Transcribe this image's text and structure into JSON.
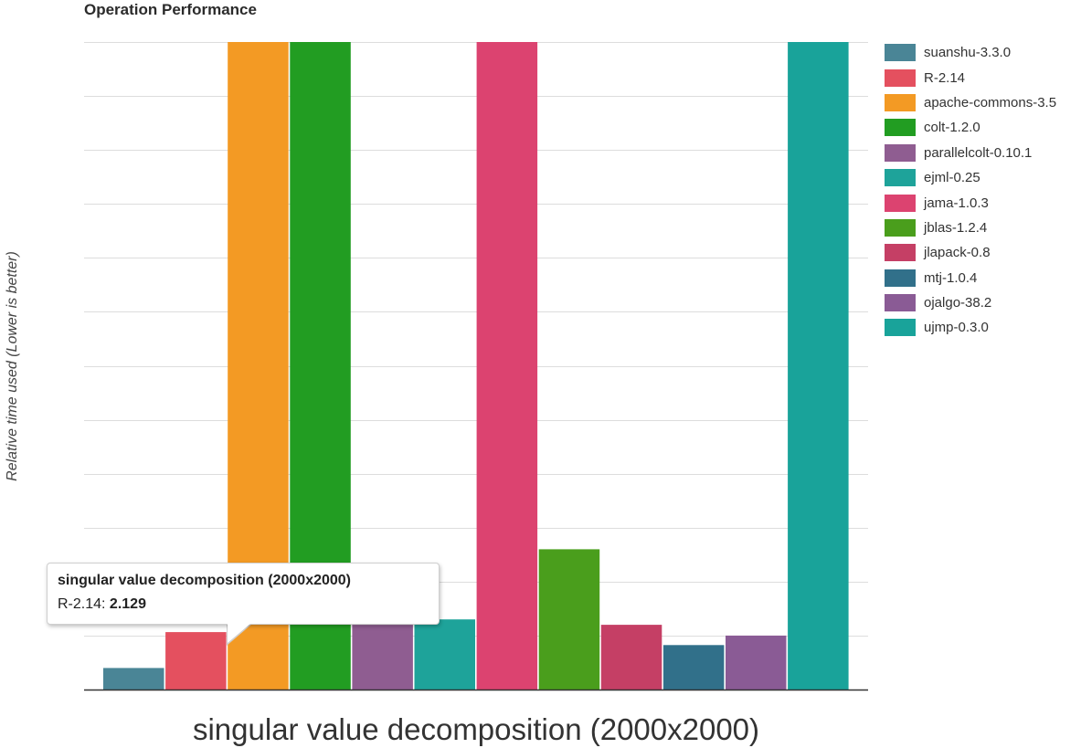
{
  "chart_data": {
    "type": "bar",
    "title": "Operation Performance",
    "xlabel": "singular value decomposition (2000x2000)",
    "ylabel": "Relative time used (Lower is better)",
    "categories": [
      "singular value decomposition (2000x2000)"
    ],
    "ylim": [
      0,
      24
    ],
    "grid": true,
    "y_tick_labels_shown": false,
    "legend_position": "right",
    "series": [
      {
        "name": "suanshu-3.3.0",
        "color": "#4a8596",
        "values": [
          0.8
        ]
      },
      {
        "name": "R-2.14",
        "color": "#e4505f",
        "values": [
          2.129
        ]
      },
      {
        "name": "apache-commons-3.5",
        "color": "#f39a24",
        "values": [
          24
        ]
      },
      {
        "name": "colt-1.2.0",
        "color": "#229d22",
        "values": [
          24
        ]
      },
      {
        "name": "parallelcolt-0.10.1",
        "color": "#8f5d91",
        "values": [
          2.4
        ]
      },
      {
        "name": "ejml-0.25",
        "color": "#1ea39a",
        "values": [
          2.6
        ]
      },
      {
        "name": "jama-1.0.3",
        "color": "#dc4370",
        "values": [
          24
        ]
      },
      {
        "name": "jblas-1.2.4",
        "color": "#4a9e1c",
        "values": [
          5.2
        ]
      },
      {
        "name": "jlapack-0.8",
        "color": "#c53f65",
        "values": [
          2.4
        ]
      },
      {
        "name": "mtj-1.0.4",
        "color": "#31708a",
        "values": [
          1.65
        ]
      },
      {
        "name": "ojalgo-38.2",
        "color": "#8a5b95",
        "values": [
          2.0
        ]
      },
      {
        "name": "ujmp-0.3.0",
        "color": "#19a39a",
        "values": [
          24
        ]
      }
    ]
  },
  "tooltip": {
    "title": "singular value decomposition (2000x2000)",
    "series_label": "R-2.14: ",
    "value": "2.129"
  }
}
